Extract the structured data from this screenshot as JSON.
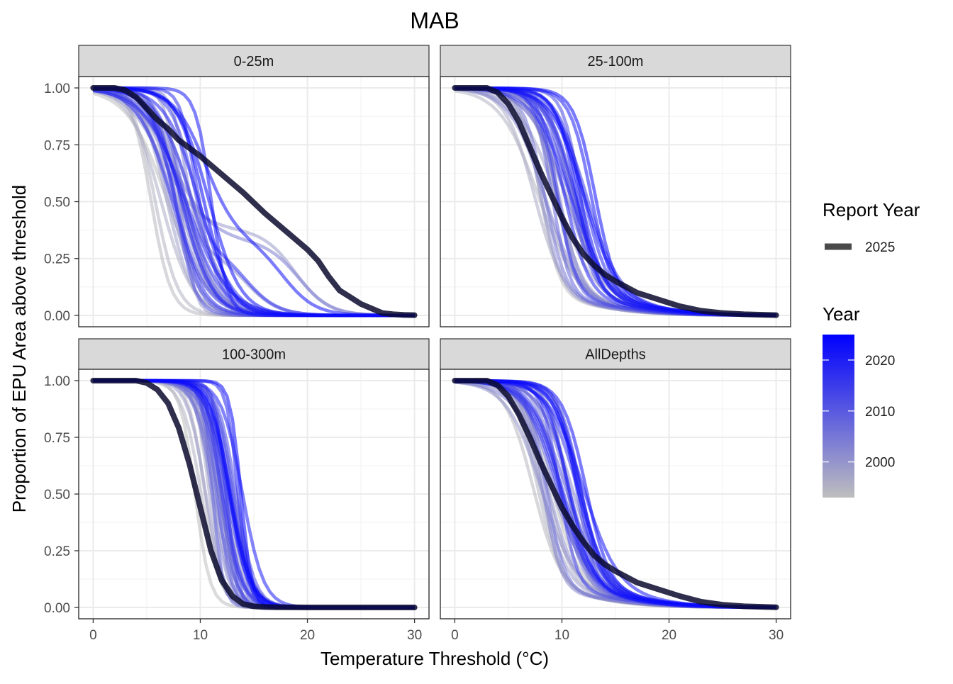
{
  "chart_data": {
    "type": "line",
    "title": "MAB",
    "xlabel": "Temperature Threshold (°C)",
    "ylabel": "Proportion of EPU Area above threshold",
    "xlim": [
      0,
      30
    ],
    "ylim": [
      0,
      1
    ],
    "x_ticks": [
      0,
      10,
      20,
      30
    ],
    "x_tick_labels": [
      "0",
      "10",
      "20",
      "30"
    ],
    "y_ticks": [
      0,
      0.25,
      0.5,
      0.75,
      1
    ],
    "y_tick_labels": [
      "0.00",
      "0.25",
      "0.50",
      "0.75",
      "1.00"
    ],
    "colors": {
      "year_low": "#BEBEBE",
      "year_high": "#0000FF",
      "highlight": "#0b0b2e"
    },
    "legend": {
      "report_year_title": "Report Year",
      "report_year_entry": "2025",
      "year_title": "Year",
      "year_min": 1993,
      "year_max": 2025,
      "year_ticks": [
        2000,
        2010,
        2020
      ],
      "year_tick_labels": [
        "2000",
        "2010",
        "2020"
      ]
    },
    "background_series_note": "One curve per year 1993-2024 (colored by Year); approximated.",
    "facets": [
      {
        "name": "0-25m",
        "highlight": {
          "name": "2025",
          "x": [
            0,
            2,
            3,
            4,
            5,
            6,
            7,
            8,
            10,
            12,
            14,
            16,
            18,
            20,
            21,
            22,
            23,
            24,
            25,
            26,
            27,
            28,
            29,
            30
          ],
          "values": [
            1.0,
            1.0,
            0.99,
            0.96,
            0.91,
            0.86,
            0.82,
            0.77,
            0.7,
            0.62,
            0.54,
            0.45,
            0.37,
            0.29,
            0.24,
            0.17,
            0.11,
            0.08,
            0.05,
            0.03,
            0.01,
            0.005,
            0.002,
            0.001
          ]
        }
      },
      {
        "name": "25-100m",
        "highlight": {
          "name": "2025",
          "x": [
            0,
            3,
            4,
            5,
            6,
            7,
            8,
            9,
            10,
            11,
            12,
            13,
            14,
            15,
            17,
            19,
            21,
            23,
            25,
            27,
            30
          ],
          "values": [
            1.0,
            1.0,
            0.98,
            0.93,
            0.85,
            0.74,
            0.63,
            0.53,
            0.43,
            0.34,
            0.27,
            0.22,
            0.18,
            0.15,
            0.1,
            0.07,
            0.04,
            0.02,
            0.01,
            0.005,
            0.001
          ]
        }
      },
      {
        "name": "100-300m",
        "highlight": {
          "name": "2025",
          "x": [
            0,
            4,
            5,
            6,
            7,
            8,
            9,
            10,
            11,
            12,
            13,
            14,
            15,
            16,
            17,
            20,
            25,
            30
          ],
          "values": [
            1.0,
            1.0,
            0.99,
            0.96,
            0.9,
            0.79,
            0.63,
            0.44,
            0.25,
            0.12,
            0.05,
            0.015,
            0.005,
            0.002,
            0.001,
            0.0,
            0.0,
            0.0
          ]
        }
      },
      {
        "name": "AllDepths",
        "highlight": {
          "name": "2025",
          "x": [
            0,
            3,
            4,
            5,
            6,
            7,
            8,
            9,
            10,
            11,
            12,
            13,
            14,
            15,
            17,
            19,
            21,
            23,
            25,
            27,
            30
          ],
          "values": [
            1.0,
            1.0,
            0.98,
            0.93,
            0.85,
            0.75,
            0.64,
            0.54,
            0.44,
            0.36,
            0.29,
            0.23,
            0.19,
            0.16,
            0.11,
            0.08,
            0.05,
            0.025,
            0.012,
            0.005,
            0.001
          ]
        }
      }
    ]
  }
}
